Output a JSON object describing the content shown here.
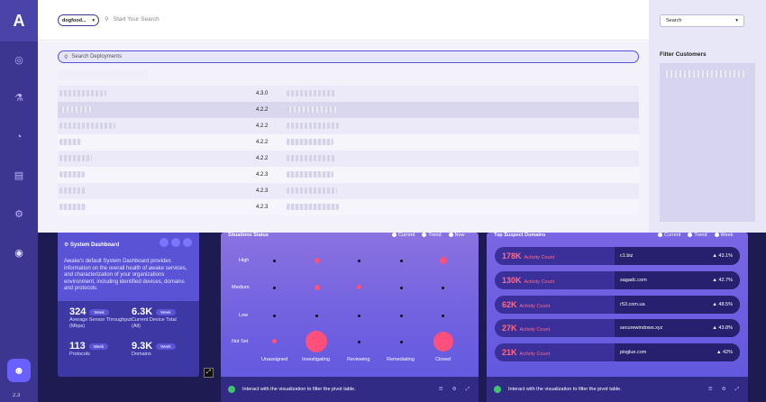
{
  "app": {
    "logo": "A",
    "version": "2.3"
  },
  "sidebar": {
    "icons": [
      "dashboard-icon",
      "threats-icon",
      "analytics-icon",
      "chat-icon",
      "settings-icon",
      "user-icon"
    ]
  },
  "topbar": {
    "tenant": "dogfood...",
    "search_placeholder": "Start Your Search"
  },
  "deployments": {
    "search_placeholder": "Search Deployments",
    "rows": [
      {
        "version": "4.3.0",
        "selected": false
      },
      {
        "version": "4.2.2",
        "selected": true
      },
      {
        "version": "4.2.2",
        "selected": false
      },
      {
        "version": "4.2.2",
        "selected": false
      },
      {
        "version": "4.2.2",
        "selected": false
      },
      {
        "version": "4.2.3",
        "selected": false
      },
      {
        "version": "4.2.3",
        "selected": false
      },
      {
        "version": "4.2.3",
        "selected": false
      }
    ]
  },
  "filter": {
    "select_value": "Search",
    "title": "Filter Customers"
  },
  "system_card": {
    "title": "System Dashboard",
    "description": "Awake's default System Dashboard provides information on the overall health of awake services, and characterization of your organizations environment, including identified devices, domains and protocols.",
    "stats": [
      {
        "value": "324",
        "pill": "Week",
        "label": "Average Sensor Throughput (Mbps)"
      },
      {
        "value": "6.3K",
        "pill": "Week",
        "label": "Current Device Total (All)"
      },
      {
        "value": "113",
        "pill": "Week",
        "label": "Protocols"
      },
      {
        "value": "9.3K",
        "pill": "Week",
        "label": "Domains"
      }
    ]
  },
  "situations_card": {
    "title": "Situations Status",
    "legend": [
      "Current",
      "Trend",
      "Now"
    ],
    "rows": [
      "High",
      "Medium",
      "Low",
      "Not Set"
    ],
    "columns": [
      "Unassigned",
      "Investigating",
      "Reviewing",
      "Remediating",
      "Closed"
    ],
    "footer": "Interact with the visualization to filter the pivot table."
  },
  "domains_card": {
    "title": "Top Suspect Domains",
    "legend": [
      "Current",
      "Trend",
      "Week"
    ],
    "metric_label": "Activity Count",
    "rows": [
      {
        "count": "178K",
        "domain": "c1.biz",
        "pct": "▲ 43.1%"
      },
      {
        "count": "130K",
        "domain": "sagadc.com",
        "pct": "▲ 42.7%"
      },
      {
        "count": "62K",
        "domain": "r53.com.ua",
        "pct": "▲ 48.5%"
      },
      {
        "count": "27K",
        "domain": "securewindows.xyz",
        "pct": "▲ 43.8%"
      },
      {
        "count": "21K",
        "domain": "pixglue.com",
        "pct": "▲ 42%"
      }
    ],
    "footer": "Interact with the visualization to filter the pivot table."
  }
}
